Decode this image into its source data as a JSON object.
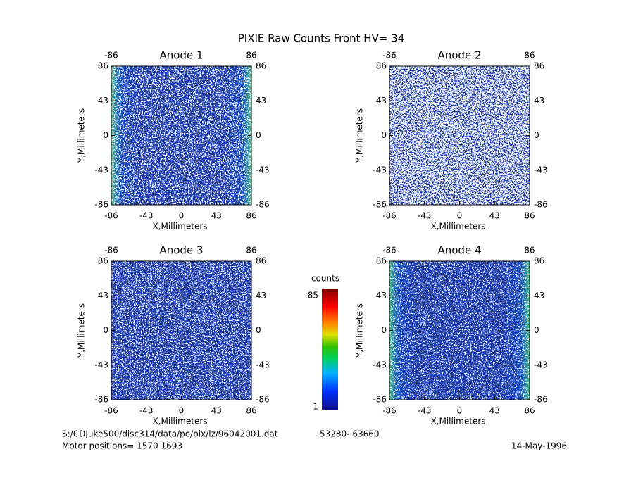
{
  "title": "PIXIE Raw Counts Front HV= 34",
  "chart_data": [
    {
      "type": "heatmap",
      "title": "Anode 1",
      "xlabel": "X,Millimeters",
      "ylabel": "Y,Millimeters",
      "xlim": [
        -86,
        86
      ],
      "ylim": [
        -86,
        86
      ],
      "xticks": [
        -86,
        -43,
        0,
        43,
        86
      ],
      "yticks": [
        -86,
        -43,
        0,
        43,
        86
      ]
    },
    {
      "type": "heatmap",
      "title": "Anode 2",
      "xlabel": "X,Millimeters",
      "ylabel": "Y,Millimeters",
      "xlim": [
        -86,
        86
      ],
      "ylim": [
        -86,
        86
      ],
      "xticks": [
        -86,
        -43,
        0,
        43,
        86
      ],
      "yticks": [
        -86,
        -43,
        0,
        43,
        86
      ]
    },
    {
      "type": "heatmap",
      "title": "Anode 3",
      "xlabel": "X,Millimeters",
      "ylabel": "Y,Millimeters",
      "xlim": [
        -86,
        86
      ],
      "ylim": [
        -86,
        86
      ],
      "xticks": [
        -86,
        -43,
        0,
        43,
        86
      ],
      "yticks": [
        -86,
        -43,
        0,
        43,
        86
      ]
    },
    {
      "type": "heatmap",
      "title": "Anode 4",
      "xlabel": "X,Millimeters",
      "ylabel": "Y,Millimeters",
      "xlim": [
        -86,
        86
      ],
      "ylim": [
        -86,
        86
      ],
      "xticks": [
        -86,
        -43,
        0,
        43,
        86
      ],
      "yticks": [
        -86,
        -43,
        0,
        43,
        86
      ]
    }
  ],
  "colorbar": {
    "label": "counts",
    "range": [
      1,
      85
    ]
  },
  "footer": {
    "file": "S:/CDJuke500/disc314/data/po/pix/lz/96042001.dat",
    "span": "53280- 63660",
    "motor": "Motor positions= 1570 1693",
    "date": "14-May-1996"
  }
}
